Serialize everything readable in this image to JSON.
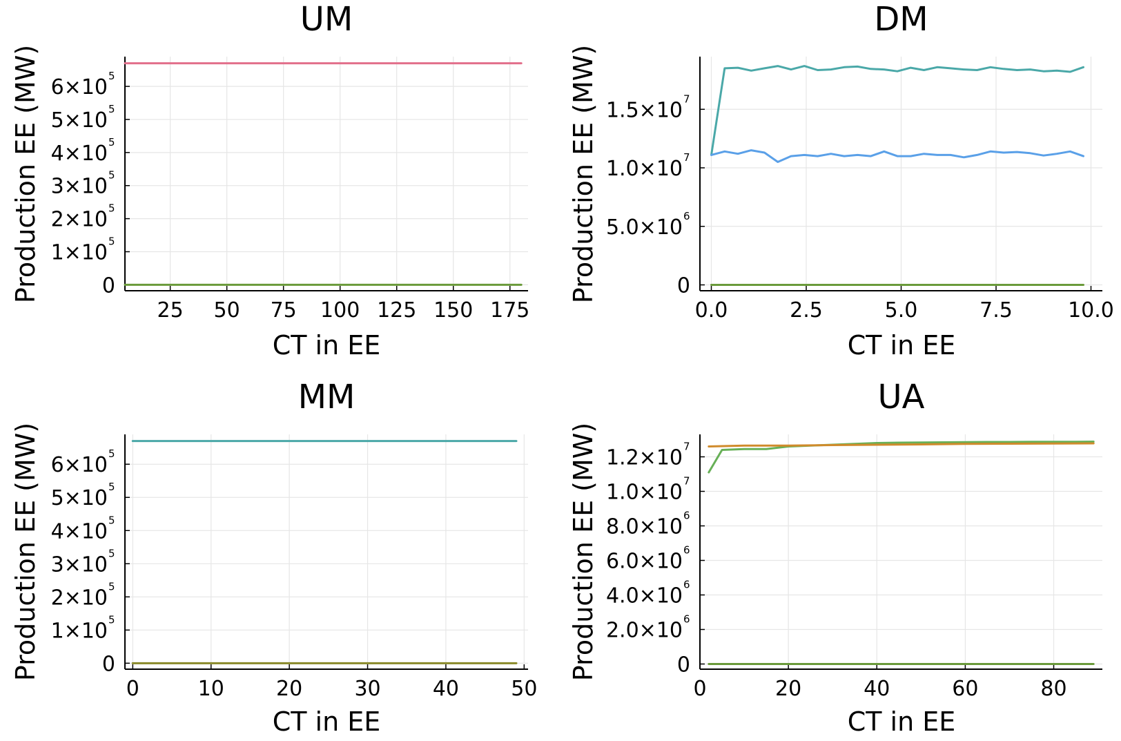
{
  "colors": {
    "pink": "#e26f8b",
    "olive": "#6a9a3a",
    "teal": "#4aa8a8",
    "blue": "#5aa0e8",
    "green": "#67b057",
    "orange": "#d08b2c",
    "grid": "#e6e6e6",
    "axis": "#000000"
  },
  "chart_data": [
    {
      "type": "line",
      "title": "UM",
      "xlabel": "CT in EE",
      "ylabel": "Production EE (MW)",
      "grid": true,
      "legend": "none",
      "xlim": [
        5,
        183
      ],
      "ylim": [
        -18000,
        690000
      ],
      "xticks": [
        {
          "value": 25,
          "label": "25"
        },
        {
          "value": 50,
          "label": "50"
        },
        {
          "value": 75,
          "label": "75"
        },
        {
          "value": 100,
          "label": "100"
        },
        {
          "value": 125,
          "label": "125"
        },
        {
          "value": 150,
          "label": "150"
        },
        {
          "value": 175,
          "label": "175"
        }
      ],
      "yticks": [
        {
          "value": 0,
          "label": "0",
          "exp": ""
        },
        {
          "value": 100000,
          "label": "1×10",
          "exp": "5"
        },
        {
          "value": 200000,
          "label": "2×10",
          "exp": "5"
        },
        {
          "value": 300000,
          "label": "3×10",
          "exp": "5"
        },
        {
          "value": 400000,
          "label": "4×10",
          "exp": "5"
        },
        {
          "value": 500000,
          "label": "5×10",
          "exp": "5"
        },
        {
          "value": 600000,
          "label": "6×10",
          "exp": "5"
        }
      ],
      "series": [
        {
          "color": "#e26f8b",
          "x": [
            5,
            180
          ],
          "y": [
            670000,
            670000
          ]
        },
        {
          "color": "#6a9a3a",
          "x": [
            5,
            180
          ],
          "y": [
            0,
            0
          ]
        }
      ]
    },
    {
      "type": "line",
      "title": "DM",
      "xlabel": "CT in EE",
      "ylabel": "Production EE (MW)",
      "grid": true,
      "legend": "none",
      "xlim": [
        -0.3,
        10.3
      ],
      "ylim": [
        -500000,
        19500000
      ],
      "xticks": [
        {
          "value": 0,
          "label": "0.0"
        },
        {
          "value": 2.5,
          "label": "2.5"
        },
        {
          "value": 5,
          "label": "5.0"
        },
        {
          "value": 7.5,
          "label": "7.5"
        },
        {
          "value": 10,
          "label": "10.0"
        }
      ],
      "yticks": [
        {
          "value": 0,
          "label": "0",
          "exp": ""
        },
        {
          "value": 5000000,
          "label": "5.0×10",
          "exp": "6"
        },
        {
          "value": 10000000,
          "label": "1.0×10",
          "exp": "7"
        },
        {
          "value": 15000000,
          "label": "1.5×10",
          "exp": "7"
        }
      ],
      "series": [
        {
          "color": "#4aa8a8",
          "x": [
            0,
            0.35,
            0.7,
            1.05,
            1.4,
            1.75,
            2.1,
            2.45,
            2.8,
            3.15,
            3.5,
            3.85,
            4.2,
            4.55,
            4.9,
            5.25,
            5.6,
            5.95,
            6.3,
            6.65,
            7.0,
            7.35,
            7.7,
            8.05,
            8.4,
            8.75,
            9.1,
            9.45,
            9.8
          ],
          "y": [
            11100000,
            18500000,
            18550000,
            18300000,
            18500000,
            18700000,
            18400000,
            18700000,
            18350000,
            18400000,
            18600000,
            18650000,
            18450000,
            18400000,
            18250000,
            18550000,
            18350000,
            18600000,
            18500000,
            18400000,
            18350000,
            18600000,
            18450000,
            18350000,
            18400000,
            18250000,
            18300000,
            18200000,
            18600000
          ]
        },
        {
          "color": "#5aa0e8",
          "x": [
            0,
            0.35,
            0.7,
            1.05,
            1.4,
            1.75,
            2.1,
            2.45,
            2.8,
            3.15,
            3.5,
            3.85,
            4.2,
            4.55,
            4.9,
            5.25,
            5.6,
            5.95,
            6.3,
            6.65,
            7.0,
            7.35,
            7.7,
            8.05,
            8.4,
            8.75,
            9.1,
            9.45,
            9.8
          ],
          "y": [
            11100000,
            11400000,
            11200000,
            11500000,
            11300000,
            10500000,
            11000000,
            11100000,
            11000000,
            11200000,
            11000000,
            11100000,
            11000000,
            11400000,
            11000000,
            11000000,
            11200000,
            11100000,
            11100000,
            10900000,
            11100000,
            11400000,
            11300000,
            11350000,
            11250000,
            11050000,
            11200000,
            11400000,
            11000000
          ]
        },
        {
          "color": "#6a9a3a",
          "x": [
            0,
            9.8
          ],
          "y": [
            0,
            0
          ]
        }
      ]
    },
    {
      "type": "line",
      "title": "MM",
      "xlabel": "CT in EE",
      "ylabel": "Production EE (MW)",
      "grid": true,
      "legend": "none",
      "xlim": [
        -1,
        50.5
      ],
      "ylim": [
        -18000,
        690000
      ],
      "xticks": [
        {
          "value": 0,
          "label": "0"
        },
        {
          "value": 10,
          "label": "10"
        },
        {
          "value": 20,
          "label": "20"
        },
        {
          "value": 30,
          "label": "30"
        },
        {
          "value": 40,
          "label": "40"
        },
        {
          "value": 50,
          "label": "50"
        }
      ],
      "yticks": [
        {
          "value": 0,
          "label": "0",
          "exp": ""
        },
        {
          "value": 100000,
          "label": "1×10",
          "exp": "5"
        },
        {
          "value": 200000,
          "label": "2×10",
          "exp": "5"
        },
        {
          "value": 300000,
          "label": "3×10",
          "exp": "5"
        },
        {
          "value": 400000,
          "label": "4×10",
          "exp": "5"
        },
        {
          "value": 500000,
          "label": "5×10",
          "exp": "5"
        },
        {
          "value": 600000,
          "label": "6×10",
          "exp": "5"
        }
      ],
      "series": [
        {
          "color": "#4aa8a8",
          "x": [
            0,
            49
          ],
          "y": [
            670000,
            670000
          ]
        },
        {
          "color": "#8a8a2a",
          "x": [
            0,
            49
          ],
          "y": [
            0,
            0
          ]
        }
      ]
    },
    {
      "type": "line",
      "title": "UA",
      "xlabel": "CT in EE",
      "ylabel": "Production EE (MW)",
      "grid": true,
      "legend": "none",
      "xlim": [
        0,
        91
      ],
      "ylim": [
        -300000,
        13300000
      ],
      "xticks": [
        {
          "value": 0,
          "label": "0"
        },
        {
          "value": 20,
          "label": "20"
        },
        {
          "value": 40,
          "label": "40"
        },
        {
          "value": 60,
          "label": "60"
        },
        {
          "value": 80,
          "label": "80"
        }
      ],
      "yticks": [
        {
          "value": 0,
          "label": "0",
          "exp": ""
        },
        {
          "value": 2000000,
          "label": "2.0×10",
          "exp": "6"
        },
        {
          "value": 4000000,
          "label": "4.0×10",
          "exp": "6"
        },
        {
          "value": 6000000,
          "label": "6.0×10",
          "exp": "6"
        },
        {
          "value": 8000000,
          "label": "8.0×10",
          "exp": "6"
        },
        {
          "value": 10000000,
          "label": "1.0×10",
          "exp": "7"
        },
        {
          "value": 12000000,
          "label": "1.2×10",
          "exp": "7"
        }
      ],
      "series": [
        {
          "color": "#67b057",
          "x": [
            2,
            5,
            10,
            15,
            20,
            25,
            30,
            35,
            40,
            45,
            50,
            55,
            60,
            65,
            70,
            75,
            80,
            85,
            89
          ],
          "y": [
            11100000,
            12400000,
            12450000,
            12450000,
            12600000,
            12650000,
            12700000,
            12750000,
            12800000,
            12820000,
            12830000,
            12840000,
            12850000,
            12860000,
            12860000,
            12870000,
            12870000,
            12870000,
            12880000
          ]
        },
        {
          "color": "#d08b2c",
          "x": [
            2,
            10,
            20,
            30,
            40,
            50,
            60,
            70,
            80,
            89
          ],
          "y": [
            12600000,
            12650000,
            12650000,
            12680000,
            12700000,
            12720000,
            12750000,
            12760000,
            12770000,
            12780000
          ]
        },
        {
          "color": "#6a9a3a",
          "x": [
            2,
            89
          ],
          "y": [
            0,
            0
          ]
        }
      ]
    }
  ]
}
